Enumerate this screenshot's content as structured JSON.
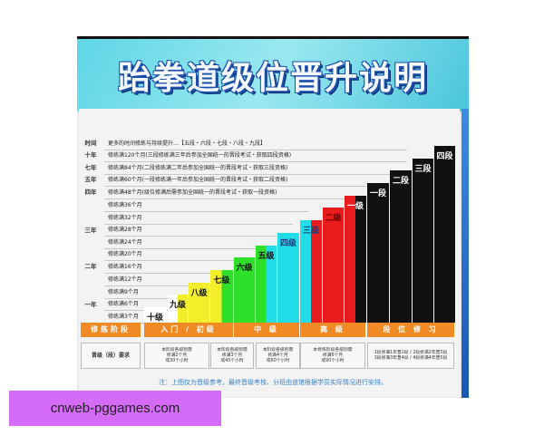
{
  "title": "跆拳道级位晋升说明",
  "rows": [
    {
      "year": "时间",
      "text": "更多的时间修炼与持续提升…【五段・六段・七段・八段・九段】"
    },
    {
      "year": "十年",
      "text": "修练满120个月(三段修练满三年后参加全国统一的晋段考试・获取四段资格)"
    },
    {
      "year": "七年",
      "text": "修练满84个月(二段修练满二年后参加全国统一的晋段考试・获取三段资格)"
    },
    {
      "year": "五年",
      "text": "修练满60个月(一段修练满一年后参加全国统一的晋段考试・获取二段资格)"
    },
    {
      "year": "四年",
      "text": "修练满48个月(级位修满后需参加全国统一的晋段考试・获取一段资格)"
    },
    {
      "year": "",
      "text": "修练满36个月"
    },
    {
      "year": "三年",
      "text": "修练满32个月"
    },
    {
      "year": "",
      "text": "修练满28个月"
    },
    {
      "year": "",
      "text": "修练满24个月"
    },
    {
      "year": "二年",
      "text": "修练满20个月"
    },
    {
      "year": "",
      "text": "修练满16个月"
    },
    {
      "year": "",
      "text": "修练满12个月"
    },
    {
      "year": "一年",
      "text": "修练满9个月"
    },
    {
      "year": "",
      "text": "修练满6个月"
    },
    {
      "year": "",
      "text": "修练满3个月"
    }
  ],
  "bars": [
    {
      "label": "十级",
      "colors": [
        "#ffffff",
        "#ffffff"
      ],
      "text_color": "#111"
    },
    {
      "label": "九级",
      "colors": [
        "#ffffff",
        "#f2ee2a"
      ],
      "text_color": "#111"
    },
    {
      "label": "八级",
      "colors": [
        "#f2ee2a",
        "#f2ee2a"
      ],
      "text_color": "#111"
    },
    {
      "label": "七级",
      "colors": [
        "#f2ee2a",
        "#2ee02a"
      ],
      "text_color": "#111"
    },
    {
      "label": "六级",
      "colors": [
        "#2ee02a",
        "#2ee02a"
      ],
      "text_color": "#111"
    },
    {
      "label": "五级",
      "colors": [
        "#2ee02a",
        "#22dce8"
      ],
      "text_color": "#111"
    },
    {
      "label": "四级",
      "colors": [
        "#22dce8",
        "#22dce8"
      ],
      "text_color": "#1a3a7a"
    },
    {
      "label": "三级",
      "colors": [
        "#22dce8",
        "#e81c1c"
      ],
      "text_color": "#1a3a7a"
    },
    {
      "label": "二级",
      "colors": [
        "#e81c1c",
        "#e81c1c"
      ],
      "text_color": "#6a0000"
    },
    {
      "label": "一级",
      "colors": [
        "#e81c1c",
        "#111111"
      ],
      "text_color": "#fff"
    },
    {
      "label": "一段",
      "colors": [
        "#111111",
        "#111111"
      ],
      "text_color": "#fff"
    },
    {
      "label": "二段",
      "colors": [
        "#111111",
        "#111111"
      ],
      "text_color": "#fff"
    },
    {
      "label": "三段",
      "colors": [
        "#111111",
        "#111111"
      ],
      "text_color": "#fff"
    },
    {
      "label": "四段",
      "colors": [
        "#111111",
        "#111111"
      ],
      "text_color": "#fff"
    }
  ],
  "stages": [
    "修练阶段",
    "入门 / 初级",
    "中 级",
    "高 级",
    "段 位 修 习"
  ],
  "requirements": [
    "晋级（段）要求",
    "本阶段各级别需\n修满2个月\n或30个小时",
    "本阶段各级别需\n修满3个月\n或45个小时",
    "本阶段各级别需\n修满4个月\n或60个小时",
    "本修炼阶段各级别需\n修满6个月\n或90个小时",
    "1段修满1年晋2段 / 2段修满2年晋3段\n3段修满3年晋4段 / 4段修满4年晋5段"
  ],
  "note": "注：上图仅为晋级参考，最终晋级考核、分班由道馆根据学员实际情况进行安排。",
  "watermark": "cnweb-pggames.com"
}
